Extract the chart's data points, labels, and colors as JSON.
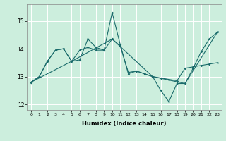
{
  "title": "",
  "xlabel": "Humidex (Indice chaleur)",
  "bg_color": "#cceedd",
  "line_color": "#1a6b6b",
  "grid_color": "#ffffff",
  "xlim": [
    -0.5,
    23.5
  ],
  "ylim": [
    11.8,
    15.6
  ],
  "yticks": [
    12,
    13,
    14,
    15
  ],
  "xticks": [
    0,
    1,
    2,
    3,
    4,
    5,
    6,
    7,
    8,
    9,
    10,
    11,
    12,
    13,
    14,
    15,
    16,
    17,
    18,
    19,
    20,
    21,
    22,
    23
  ],
  "line1_x": [
    0,
    1,
    2,
    3,
    4,
    5,
    6,
    7,
    8,
    9,
    10,
    11,
    12,
    13,
    14,
    15,
    16,
    17,
    18,
    19,
    20,
    21,
    22,
    23
  ],
  "line1_y": [
    12.8,
    13.0,
    13.55,
    13.95,
    14.0,
    13.55,
    13.6,
    14.35,
    14.05,
    13.95,
    14.35,
    14.1,
    13.15,
    13.2,
    13.1,
    13.0,
    12.95,
    12.9,
    12.85,
    13.3,
    13.35,
    13.4,
    13.45,
    13.5
  ],
  "line2_x": [
    0,
    1,
    2,
    3,
    4,
    5,
    6,
    7,
    8,
    9,
    10,
    11,
    12,
    13,
    14,
    15,
    16,
    17,
    18,
    19,
    20,
    21,
    22,
    23
  ],
  "line2_y": [
    12.8,
    13.0,
    13.55,
    13.95,
    14.0,
    13.55,
    13.95,
    14.05,
    13.95,
    13.95,
    15.3,
    14.15,
    13.1,
    13.2,
    13.1,
    13.0,
    12.5,
    12.1,
    12.75,
    12.75,
    13.3,
    13.9,
    14.35,
    14.6
  ],
  "line3_x": [
    0,
    5,
    10,
    15,
    19,
    23
  ],
  "line3_y": [
    12.8,
    13.55,
    14.35,
    13.0,
    12.75,
    14.6
  ]
}
